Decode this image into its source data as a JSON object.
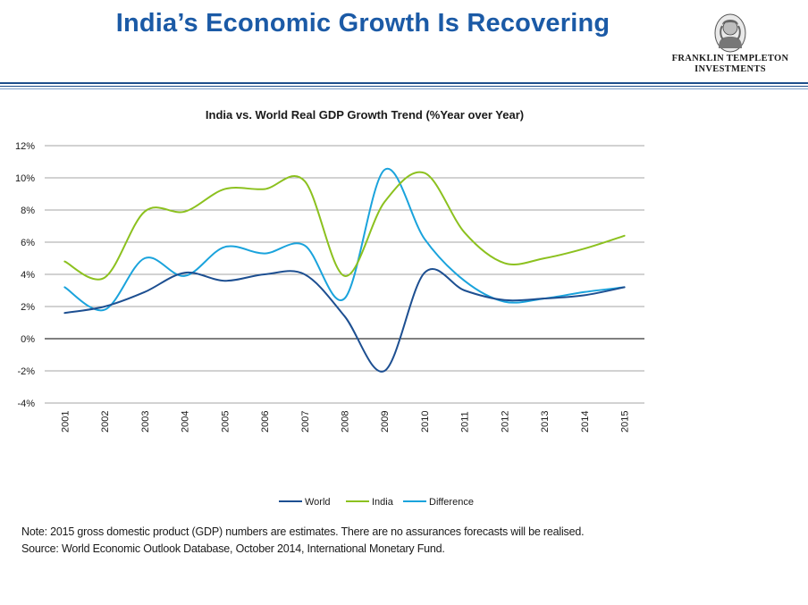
{
  "header": {
    "title": "India’s Economic Growth Is Recovering",
    "logo_line1": "FRANKLIN TEMPLETON",
    "logo_line2": "INVESTMENTS"
  },
  "chart_data": {
    "type": "line",
    "title": "India vs. World Real GDP Growth Trend (%Year over Year)",
    "xlabel": "",
    "ylabel": "",
    "x": [
      "2001",
      "2002",
      "2003",
      "2004",
      "2005",
      "2006",
      "2007",
      "2008",
      "2009",
      "2010",
      "2011",
      "2012",
      "2013",
      "2014",
      "2015"
    ],
    "ylim": [
      -4,
      12
    ],
    "yticks": [
      -4,
      -2,
      0,
      2,
      4,
      6,
      8,
      10,
      12
    ],
    "ytick_labels": [
      "-4%",
      "-2%",
      "0%",
      "2%",
      "4%",
      "6%",
      "8%",
      "10%",
      "12%"
    ],
    "grid": true,
    "legend_position": "bottom",
    "series": [
      {
        "name": "World",
        "color": "#1d4f91",
        "values": [
          1.6,
          2.0,
          2.9,
          4.1,
          3.6,
          4.0,
          4.0,
          1.4,
          -2.0,
          4.1,
          3.0,
          2.4,
          2.5,
          2.7,
          3.2
        ]
      },
      {
        "name": "India",
        "color": "#8cc11f",
        "values": [
          4.8,
          3.8,
          7.9,
          7.9,
          9.3,
          9.3,
          9.8,
          3.9,
          8.5,
          10.3,
          6.6,
          4.7,
          5.0,
          5.6,
          6.4
        ]
      },
      {
        "name": "Difference",
        "color": "#1aa3dc",
        "values": [
          3.2,
          1.8,
          5.0,
          3.9,
          5.7,
          5.3,
          5.8,
          2.5,
          10.5,
          6.2,
          3.6,
          2.3,
          2.5,
          2.9,
          3.2
        ]
      }
    ]
  },
  "footer": {
    "note": "Note: 2015 gross domestic product (GDP) numbers are estimates. There are no assurances forecasts will be realised.",
    "source": "Source: World Economic Outlook Database, October 2014, International Monetary Fund."
  }
}
